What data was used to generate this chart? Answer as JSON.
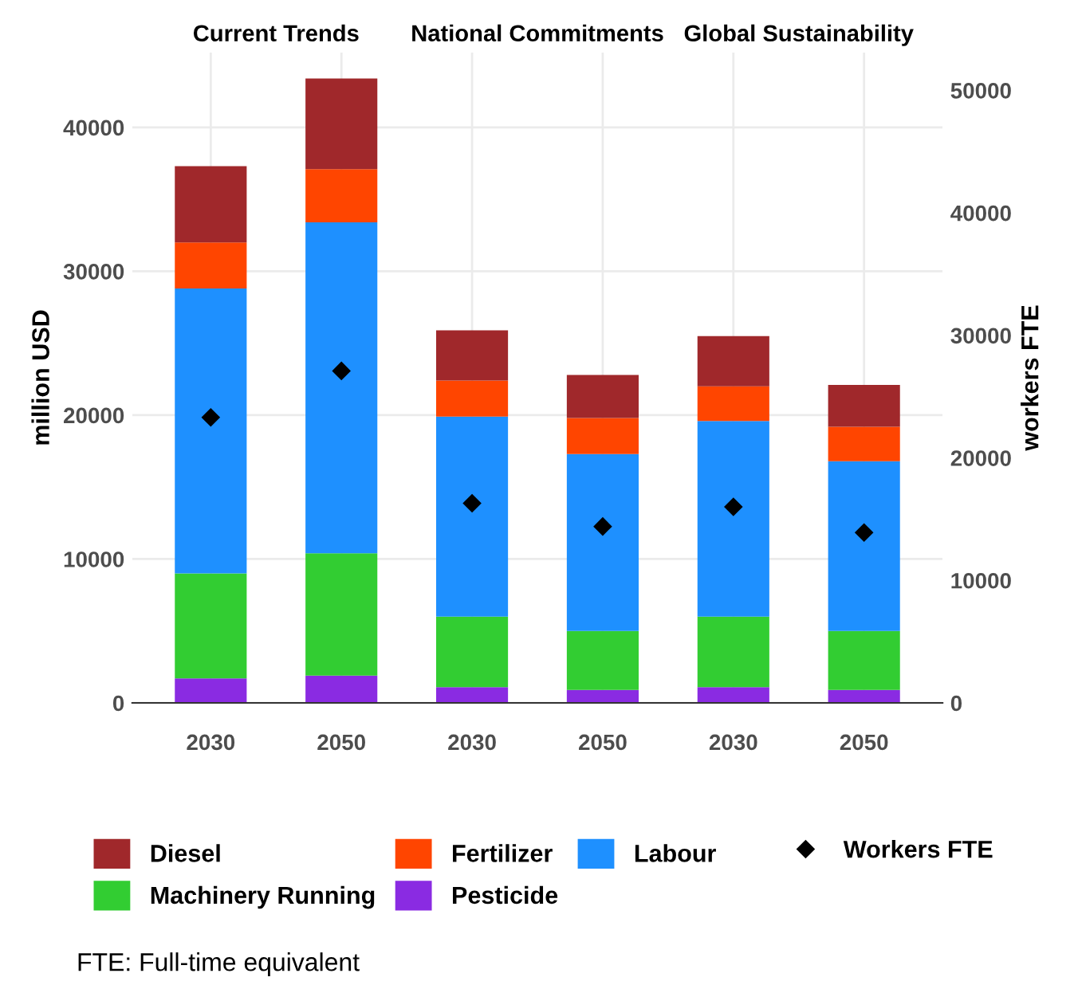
{
  "chart_data": {
    "type": "bar",
    "categories": [
      "2030",
      "2050",
      "2030",
      "2050",
      "2030",
      "2050"
    ],
    "stacked": true,
    "ylabel": "million USD",
    "y2label": "workers FTE",
    "ylim": [
      0,
      45200
    ],
    "yticks": [
      0,
      10000,
      20000,
      30000,
      40000
    ],
    "y2lim": [
      0,
      53080
    ],
    "y2ticks": [
      0,
      10000,
      20000,
      30000,
      40000,
      50000
    ],
    "grid": true,
    "legend": "bottom",
    "annotations": [
      "Current Trends",
      "National Commitments",
      "Global Sustainability",
      "FTE: Full-time equivalent"
    ],
    "series": [
      {
        "name": "Pesticide",
        "color": "#8a2be2",
        "values": [
          1700,
          1900,
          1100,
          900,
          1100,
          900
        ]
      },
      {
        "name": "Machinery Running",
        "color": "#32cd32",
        "values": [
          7300,
          8500,
          4900,
          4100,
          4900,
          4100
        ]
      },
      {
        "name": "Labour",
        "color": "#1e90ff",
        "values": [
          19800,
          23000,
          13900,
          12300,
          13600,
          11800
        ]
      },
      {
        "name": "Fertilizer",
        "color": "#ff4500",
        "values": [
          3200,
          3700,
          2500,
          2500,
          2400,
          2400
        ]
      },
      {
        "name": "Diesel",
        "color": "#a0282b",
        "values": [
          5300,
          6300,
          3500,
          3000,
          3500,
          2900
        ]
      },
      {
        "name": "Workers FTE",
        "type": "scatter",
        "axis": "y2",
        "marker": "diamond",
        "color": "#000000",
        "values": [
          23300,
          27100,
          16300,
          14400,
          16000,
          13900
        ]
      }
    ]
  }
}
